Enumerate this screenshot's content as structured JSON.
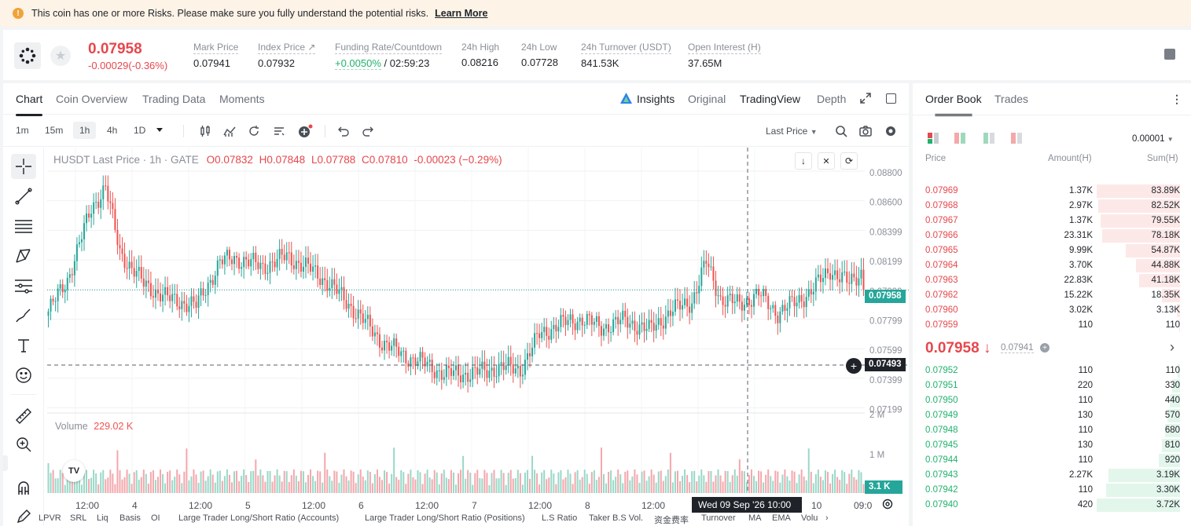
{
  "banner": {
    "message": "This coin has one or more Risks. Please make sure you fully understand the potential risks.",
    "link": "Learn More"
  },
  "ticker": {
    "last_price": "0.07958",
    "change": "-0.00029(-0.36%)",
    "stats": [
      {
        "label": "Mark Price",
        "value": "0.07941"
      },
      {
        "label": "Index Price ↗",
        "value": "0.07932"
      },
      {
        "label": "Funding Rate/Countdown",
        "value_green": "+0.0050%",
        "value": " / 02:59:23"
      },
      {
        "label": "24h High",
        "value": "0.08216"
      },
      {
        "label": "24h Low",
        "value": "0.07728"
      },
      {
        "label": "24h Turnover (USDT)",
        "value": "841.53K"
      },
      {
        "label": "Open Interest (H)",
        "value": "37.65M"
      }
    ]
  },
  "chart_tabs": [
    "Chart",
    "Coin Overview",
    "Trading Data",
    "Moments"
  ],
  "view_tabs": [
    "Insights",
    "Original",
    "TradingView",
    "Depth"
  ],
  "timeframes": [
    "1m",
    "15m",
    "1h",
    "4h",
    "1D"
  ],
  "price_type": "Last Price",
  "legend": {
    "symbol": "HUSDT Last Price · 1h · GATE",
    "o": "O0.07832",
    "h": "H0.07848",
    "l": "L0.07788",
    "c": "C0.07810",
    "chg": "-0.00023 (−0.29%)"
  },
  "volume_label": "Volume",
  "volume_value": "229.02 K",
  "price_ticks": [
    "0.08800",
    "0.08600",
    "0.08399",
    "0.08199",
    "0.07999",
    "0.07799",
    "0.07599",
    "0.07399",
    "0.07199"
  ],
  "vol_ticks": [
    "2 M",
    "1 M"
  ],
  "price_tag": "0.07958",
  "cursor_price": "0.07493",
  "vol_tag": "3.1 K",
  "time_labels": [
    "12:00",
    "4",
    "12:00",
    "5",
    "12:00",
    "6",
    "12:00",
    "7",
    "12:00",
    "8",
    "12:00",
    "10",
    "09:0"
  ],
  "cursor_time": "Wed 09 Sep '26   10:00",
  "indicators": [
    "LPVR",
    "SRL",
    "Liq",
    "Basis",
    "OI",
    "Large Trader Long/Short Ratio (Accounts)",
    "Large Trader Long/Short Ratio (Positions)",
    "L.S Ratio",
    "Taker B.S Vol.",
    "资金费率",
    "Turnover",
    "MA",
    "EMA",
    "Volu"
  ],
  "orderbook": {
    "tabs": [
      "Order Book",
      "Trades"
    ],
    "precision": "0.00001",
    "headers": [
      "Price",
      "Amount(H)",
      "Sum(H)"
    ],
    "asks": [
      {
        "p": "0.07969",
        "a": "1.37K",
        "s": "83.89K",
        "d": 1.0
      },
      {
        "p": "0.07968",
        "a": "2.97K",
        "s": "82.52K",
        "d": 0.98
      },
      {
        "p": "0.07967",
        "a": "1.37K",
        "s": "79.55K",
        "d": 0.95
      },
      {
        "p": "0.07966",
        "a": "23.31K",
        "s": "78.18K",
        "d": 0.93
      },
      {
        "p": "0.07965",
        "a": "9.99K",
        "s": "54.87K",
        "d": 0.65
      },
      {
        "p": "0.07964",
        "a": "3.70K",
        "s": "44.88K",
        "d": 0.53
      },
      {
        "p": "0.07963",
        "a": "22.83K",
        "s": "41.18K",
        "d": 0.49
      },
      {
        "p": "0.07962",
        "a": "15.22K",
        "s": "18.35K",
        "d": 0.22
      },
      {
        "p": "0.07960",
        "a": "3.02K",
        "s": "3.13K",
        "d": 0.04
      },
      {
        "p": "0.07959",
        "a": "110",
        "s": "110",
        "d": 0.01
      }
    ],
    "mid_price": "0.07958 ↓",
    "mark": "0.07941",
    "bids": [
      {
        "p": "0.07952",
        "a": "110",
        "s": "110",
        "d": 0.03
      },
      {
        "p": "0.07951",
        "a": "220",
        "s": "330",
        "d": 0.09
      },
      {
        "p": "0.07950",
        "a": "110",
        "s": "440",
        "d": 0.12
      },
      {
        "p": "0.07949",
        "a": "130",
        "s": "570",
        "d": 0.15
      },
      {
        "p": "0.07948",
        "a": "110",
        "s": "680",
        "d": 0.18
      },
      {
        "p": "0.07945",
        "a": "130",
        "s": "810",
        "d": 0.22
      },
      {
        "p": "0.07944",
        "a": "110",
        "s": "920",
        "d": 0.25
      },
      {
        "p": "0.07943",
        "a": "2.27K",
        "s": "3.19K",
        "d": 0.86
      },
      {
        "p": "0.07942",
        "a": "110",
        "s": "3.30K",
        "d": 0.89
      },
      {
        "p": "0.07940",
        "a": "420",
        "s": "3.72K",
        "d": 1.0
      }
    ]
  },
  "colors": {
    "up": "#26a69a",
    "down": "#ef5350",
    "ask": "#e5484d",
    "bid": "#20b26c"
  }
}
